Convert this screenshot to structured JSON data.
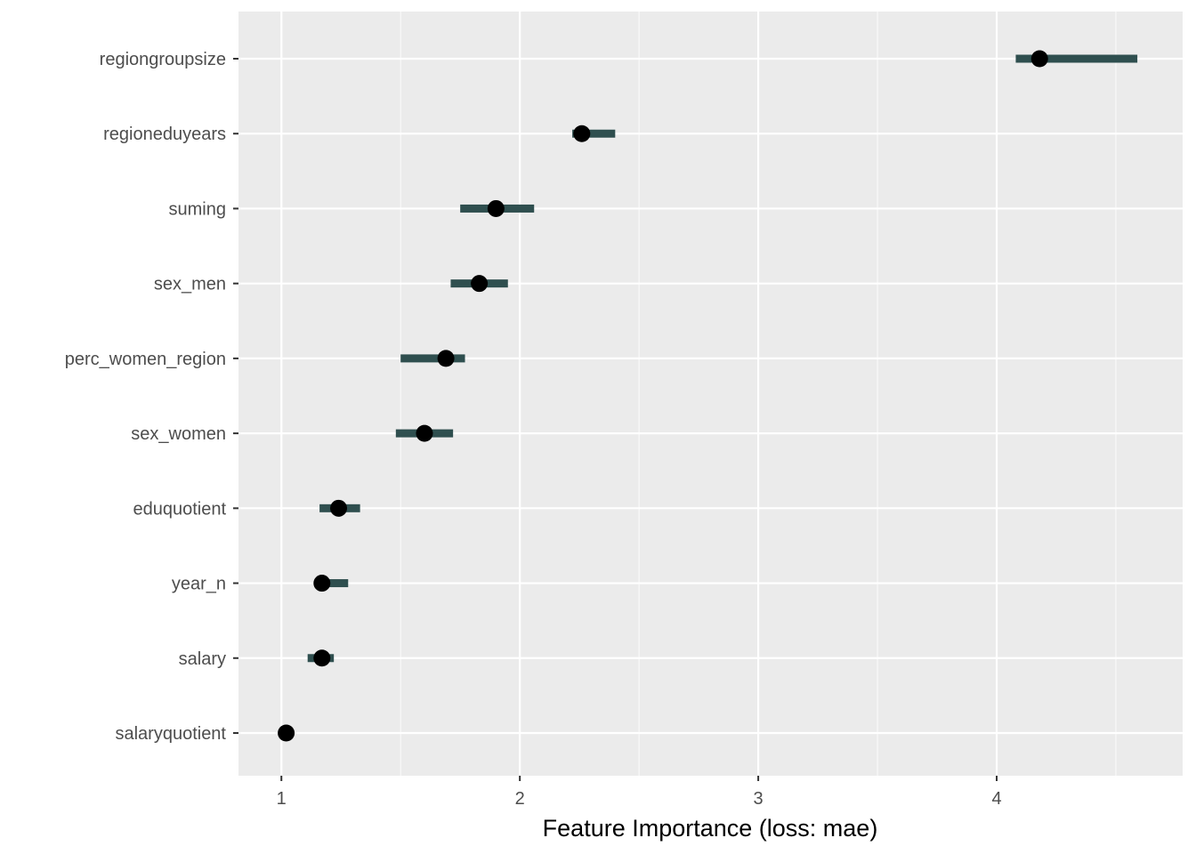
{
  "chart_data": {
    "type": "scatter",
    "subtype": "feature-importance-dot-with-interval",
    "title": "",
    "xlabel": "Feature Importance (loss: mae)",
    "ylabel": "",
    "xlim": [
      0.82,
      4.78
    ],
    "xticks": [
      1,
      2,
      3,
      4
    ],
    "grid": true,
    "legend": "none",
    "colors": {
      "panel_background": "#ebebeb",
      "grid_major": "#ffffff",
      "interval": "#2f4f4f",
      "point": "#000000",
      "tick_text": "#4d4d4d",
      "axis_title": "#000000"
    },
    "features": [
      {
        "name": "regiongroupsize",
        "importance": 4.18,
        "lower": 4.08,
        "upper": 4.59
      },
      {
        "name": "regioneduyears",
        "importance": 2.26,
        "lower": 2.22,
        "upper": 2.4
      },
      {
        "name": "suming",
        "importance": 1.9,
        "lower": 1.75,
        "upper": 2.06
      },
      {
        "name": "sex_men",
        "importance": 1.83,
        "lower": 1.71,
        "upper": 1.95
      },
      {
        "name": "perc_women_region",
        "importance": 1.69,
        "lower": 1.5,
        "upper": 1.77
      },
      {
        "name": "sex_women",
        "importance": 1.6,
        "lower": 1.48,
        "upper": 1.72
      },
      {
        "name": "eduquotient",
        "importance": 1.24,
        "lower": 1.16,
        "upper": 1.33
      },
      {
        "name": "year_n",
        "importance": 1.17,
        "lower": 1.17,
        "upper": 1.28
      },
      {
        "name": "salary",
        "importance": 1.17,
        "lower": 1.11,
        "upper": 1.22
      },
      {
        "name": "salaryquotient",
        "importance": 1.02,
        "lower": 1.02,
        "upper": 1.02
      }
    ]
  }
}
